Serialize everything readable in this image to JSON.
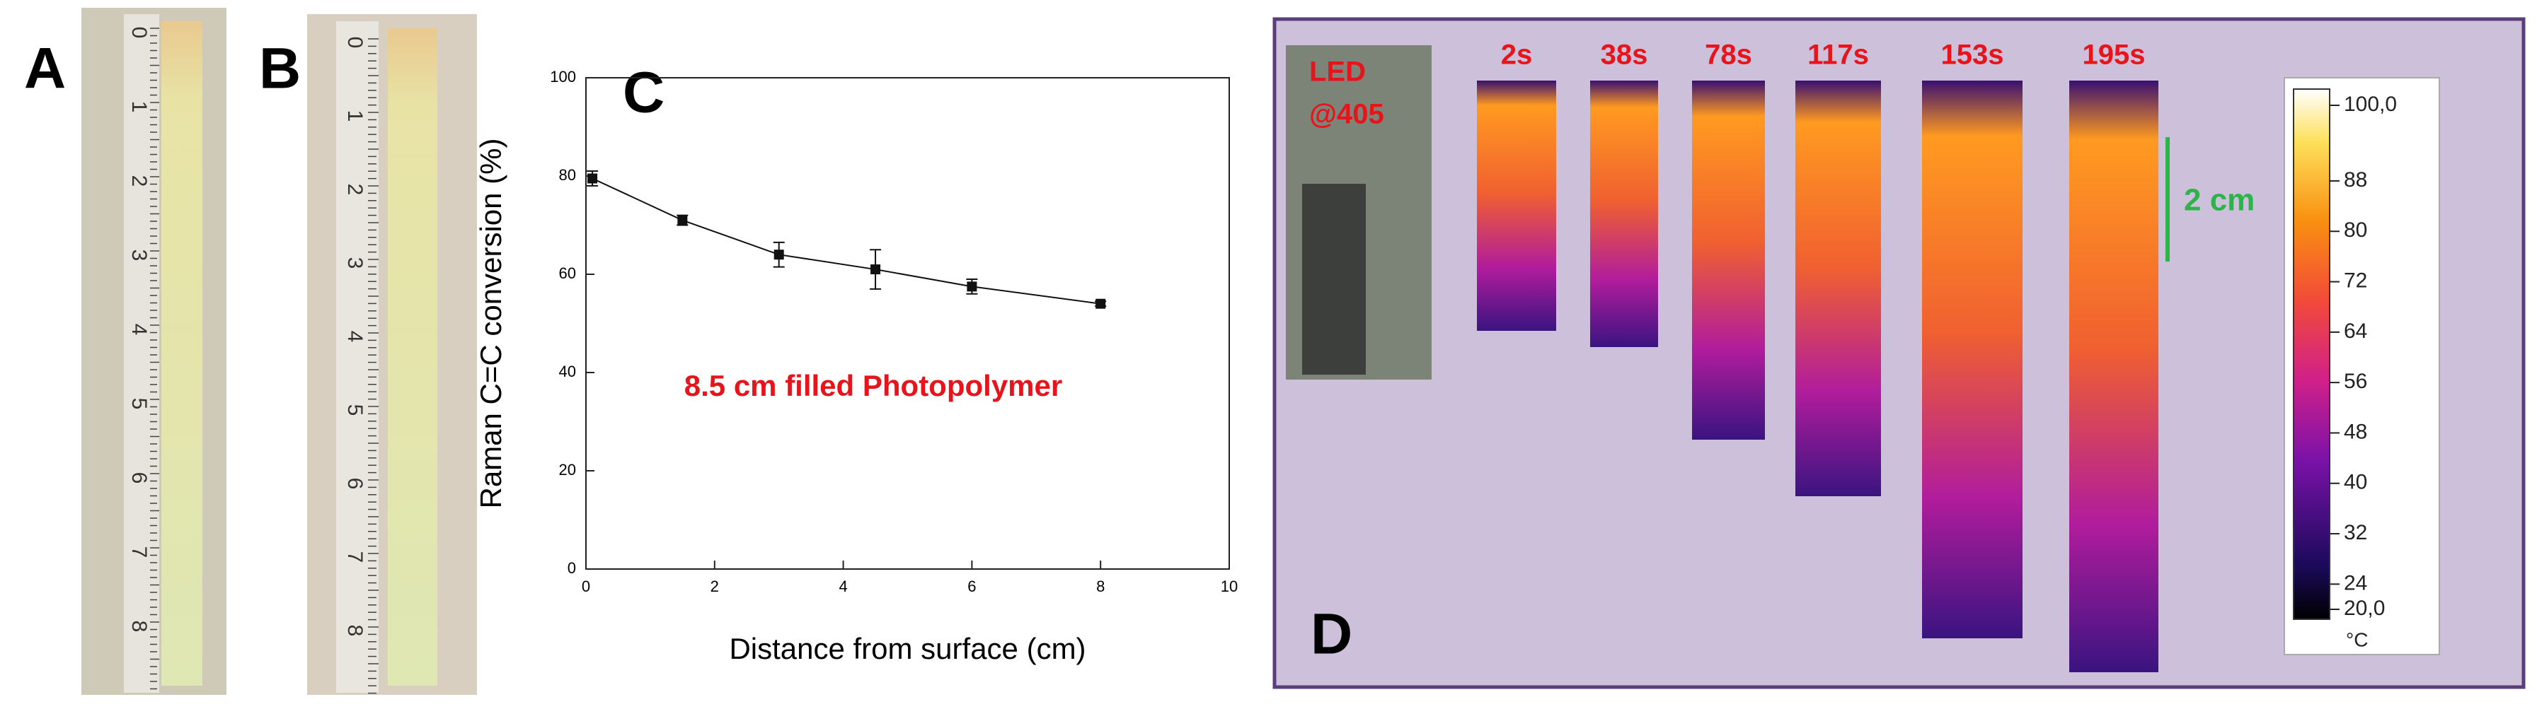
{
  "panels": {
    "a": "A",
    "b": "B",
    "c": "C",
    "d": "D"
  },
  "rulers": {
    "labels": [
      "0",
      "1",
      "2",
      "3",
      "4",
      "5",
      "6",
      "7",
      "8"
    ]
  },
  "chart_data": {
    "type": "line",
    "x_label": "Distance from surface (cm)",
    "y_label": "Raman C=C conversion (%)",
    "annotation": "8.5 cm filled Photopolymer",
    "x": [
      0.1,
      1.5,
      3,
      4.5,
      6,
      8
    ],
    "values": [
      79.5,
      71,
      64,
      61,
      57.5,
      54
    ],
    "errors": [
      1.5,
      1,
      2.5,
      4,
      1.5,
      0.5
    ],
    "color": "#111111",
    "xlim": [
      0,
      10
    ],
    "xticks": [
      0,
      2,
      4,
      6,
      8,
      10
    ],
    "ylim": [
      0,
      100
    ],
    "yticks": [
      0,
      20,
      40,
      60,
      80,
      100
    ]
  },
  "thermal": {
    "led_label": [
      "LED",
      "@405"
    ],
    "times": [
      "2s",
      "38s",
      "78s",
      "117s",
      "153s",
      "195s"
    ],
    "scale_label": "2 cm",
    "clim": [
      20,
      100
    ],
    "colorbar_ticks": [
      {
        "value": 100,
        "label": "100,0"
      },
      88,
      80,
      72,
      64,
      56,
      48,
      40,
      32,
      24,
      {
        "value": 20,
        "label": "20,0"
      }
    ],
    "unit": "°C"
  }
}
